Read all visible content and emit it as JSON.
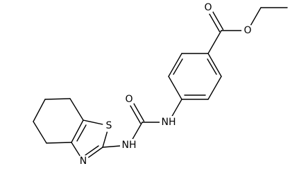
{
  "labels": [
    "O",
    "O",
    "NH",
    "O",
    "NH",
    "S",
    "N"
  ]
}
